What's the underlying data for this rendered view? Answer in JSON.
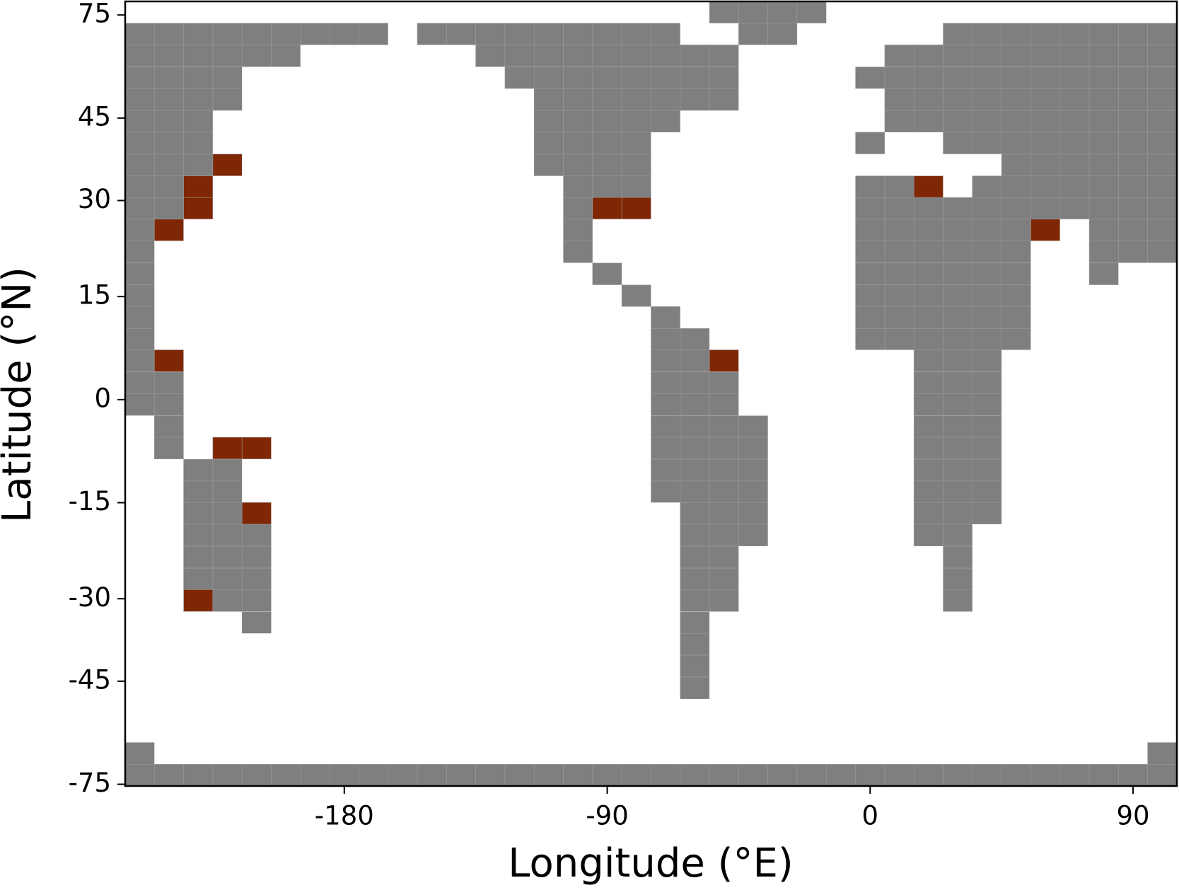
{
  "chart_data": {
    "type": "grid-map",
    "x_label": "Longitude (°E)",
    "y_label": "Latitude (°N)",
    "xlim": [
      -255,
      105
    ],
    "ylim": [
      -76,
      90
    ],
    "yscale": "sine",
    "xticks": [
      -180,
      -90,
      0,
      90
    ],
    "yticks": [
      75,
      45,
      30,
      15,
      0,
      -15,
      -30,
      -45,
      -75
    ],
    "colors": [
      "#ffffff",
      "#7f7f7f",
      "#7f2704"
    ],
    "x": [
      -250,
      -240,
      -230,
      -220,
      -210,
      -200,
      -190,
      -180,
      -170,
      -160,
      -150,
      -140,
      -130,
      -120,
      -110,
      -100,
      -90,
      -80,
      -70,
      -60,
      -50,
      -40,
      -30,
      -20,
      -10,
      0,
      10,
      20,
      30,
      40,
      50,
      60,
      70,
      80,
      90,
      100
    ],
    "y": [
      76.6,
      66.6,
      59.7,
      53.9,
      48.9,
      44.3,
      40.1,
      36.1,
      32.3,
      28.7,
      25.2,
      21.8,
      18.4,
      15.1,
      11.9,
      8.7,
      5.6,
      2.4,
      -0.7,
      -3.9,
      -7.0,
      -10.2,
      -13.4,
      -16.6,
      -19.9,
      -23.3,
      -26.8,
      -30.3,
      -34.1,
      -37.9,
      -42.0,
      -46.4,
      -51.2,
      -56.5,
      -62.7,
      -70.6
    ],
    "values": [
      [
        0,
        0,
        0,
        0,
        0,
        0,
        0,
        0,
        0,
        0,
        0,
        0,
        0,
        0,
        0,
        0,
        0,
        0,
        0,
        0,
        1,
        1,
        1,
        1,
        0,
        0,
        0,
        0,
        0,
        0,
        0,
        0,
        0,
        0,
        0,
        0
      ],
      [
        1,
        1,
        1,
        1,
        1,
        1,
        1,
        1,
        1,
        0,
        1,
        1,
        1,
        1,
        1,
        1,
        1,
        1,
        1,
        0,
        0,
        1,
        1,
        0,
        0,
        0,
        0,
        0,
        1,
        1,
        1,
        1,
        1,
        1,
        1,
        1
      ],
      [
        1,
        1,
        1,
        1,
        1,
        1,
        0,
        0,
        0,
        0,
        0,
        0,
        1,
        1,
        1,
        1,
        1,
        1,
        1,
        1,
        1,
        0,
        0,
        0,
        0,
        0,
        1,
        1,
        1,
        1,
        1,
        1,
        1,
        1,
        1,
        1
      ],
      [
        1,
        1,
        1,
        1,
        0,
        0,
        0,
        0,
        0,
        0,
        0,
        0,
        0,
        1,
        1,
        1,
        1,
        1,
        1,
        1,
        1,
        0,
        0,
        0,
        0,
        1,
        1,
        1,
        1,
        1,
        1,
        1,
        1,
        1,
        1,
        1
      ],
      [
        1,
        1,
        1,
        1,
        0,
        0,
        0,
        0,
        0,
        0,
        0,
        0,
        0,
        0,
        1,
        1,
        1,
        1,
        1,
        1,
        1,
        0,
        0,
        0,
        0,
        0,
        1,
        1,
        1,
        1,
        1,
        1,
        1,
        1,
        1,
        1
      ],
      [
        1,
        1,
        1,
        0,
        0,
        0,
        0,
        0,
        0,
        0,
        0,
        0,
        0,
        0,
        1,
        1,
        1,
        1,
        1,
        0,
        0,
        0,
        0,
        0,
        0,
        0,
        1,
        1,
        1,
        1,
        1,
        1,
        1,
        1,
        1,
        1
      ],
      [
        1,
        1,
        1,
        0,
        0,
        0,
        0,
        0,
        0,
        0,
        0,
        0,
        0,
        0,
        1,
        1,
        1,
        1,
        0,
        0,
        0,
        0,
        0,
        0,
        0,
        1,
        0,
        0,
        1,
        1,
        1,
        1,
        1,
        1,
        1,
        1
      ],
      [
        1,
        1,
        1,
        2,
        0,
        0,
        0,
        0,
        0,
        0,
        0,
        0,
        0,
        0,
        1,
        1,
        1,
        1,
        0,
        0,
        0,
        0,
        0,
        0,
        0,
        0,
        0,
        0,
        0,
        0,
        1,
        1,
        1,
        1,
        1,
        1
      ],
      [
        1,
        1,
        2,
        0,
        0,
        0,
        0,
        0,
        0,
        0,
        0,
        0,
        0,
        0,
        0,
        1,
        1,
        1,
        0,
        0,
        0,
        0,
        0,
        0,
        0,
        1,
        1,
        2,
        0,
        1,
        1,
        1,
        1,
        1,
        1,
        1
      ],
      [
        1,
        1,
        2,
        0,
        0,
        0,
        0,
        0,
        0,
        0,
        0,
        0,
        0,
        0,
        0,
        1,
        2,
        2,
        0,
        0,
        0,
        0,
        0,
        0,
        0,
        1,
        1,
        1,
        1,
        1,
        1,
        1,
        1,
        1,
        1,
        1
      ],
      [
        1,
        2,
        0,
        0,
        0,
        0,
        0,
        0,
        0,
        0,
        0,
        0,
        0,
        0,
        0,
        1,
        0,
        0,
        0,
        0,
        0,
        0,
        0,
        0,
        0,
        1,
        1,
        1,
        1,
        1,
        1,
        2,
        0,
        1,
        1,
        1
      ],
      [
        1,
        0,
        0,
        0,
        0,
        0,
        0,
        0,
        0,
        0,
        0,
        0,
        0,
        0,
        0,
        1,
        0,
        0,
        0,
        0,
        0,
        0,
        0,
        0,
        0,
        1,
        1,
        1,
        1,
        1,
        1,
        0,
        0,
        1,
        1,
        1
      ],
      [
        1,
        0,
        0,
        0,
        0,
        0,
        0,
        0,
        0,
        0,
        0,
        0,
        0,
        0,
        0,
        0,
        1,
        0,
        0,
        0,
        0,
        0,
        0,
        0,
        0,
        1,
        1,
        1,
        1,
        1,
        1,
        0,
        0,
        1,
        0,
        0
      ],
      [
        1,
        0,
        0,
        0,
        0,
        0,
        0,
        0,
        0,
        0,
        0,
        0,
        0,
        0,
        0,
        0,
        0,
        1,
        0,
        0,
        0,
        0,
        0,
        0,
        0,
        1,
        1,
        1,
        1,
        1,
        1,
        0,
        0,
        0,
        0,
        0
      ],
      [
        1,
        0,
        0,
        0,
        0,
        0,
        0,
        0,
        0,
        0,
        0,
        0,
        0,
        0,
        0,
        0,
        0,
        0,
        1,
        0,
        0,
        0,
        0,
        0,
        0,
        1,
        1,
        1,
        1,
        1,
        1,
        0,
        0,
        0,
        0,
        0
      ],
      [
        1,
        0,
        0,
        0,
        0,
        0,
        0,
        0,
        0,
        0,
        0,
        0,
        0,
        0,
        0,
        0,
        0,
        0,
        1,
        1,
        0,
        0,
        0,
        0,
        0,
        1,
        1,
        1,
        1,
        1,
        1,
        0,
        0,
        0,
        0,
        0
      ],
      [
        1,
        2,
        0,
        0,
        0,
        0,
        0,
        0,
        0,
        0,
        0,
        0,
        0,
        0,
        0,
        0,
        0,
        0,
        1,
        1,
        2,
        0,
        0,
        0,
        0,
        0,
        0,
        1,
        1,
        1,
        0,
        0,
        0,
        0,
        0,
        0
      ],
      [
        1,
        1,
        0,
        0,
        0,
        0,
        0,
        0,
        0,
        0,
        0,
        0,
        0,
        0,
        0,
        0,
        0,
        0,
        1,
        1,
        1,
        0,
        0,
        0,
        0,
        0,
        0,
        1,
        1,
        1,
        0,
        0,
        0,
        0,
        0,
        0
      ],
      [
        1,
        1,
        0,
        0,
        0,
        0,
        0,
        0,
        0,
        0,
        0,
        0,
        0,
        0,
        0,
        0,
        0,
        0,
        1,
        1,
        1,
        0,
        0,
        0,
        0,
        0,
        0,
        1,
        1,
        1,
        0,
        0,
        0,
        0,
        0,
        0
      ],
      [
        0,
        1,
        0,
        0,
        0,
        0,
        0,
        0,
        0,
        0,
        0,
        0,
        0,
        0,
        0,
        0,
        0,
        0,
        1,
        1,
        1,
        1,
        0,
        0,
        0,
        0,
        0,
        1,
        1,
        1,
        0,
        0,
        0,
        0,
        0,
        0
      ],
      [
        0,
        1,
        0,
        2,
        2,
        0,
        0,
        0,
        0,
        0,
        0,
        0,
        0,
        0,
        0,
        0,
        0,
        0,
        1,
        1,
        1,
        1,
        0,
        0,
        0,
        0,
        0,
        1,
        1,
        1,
        0,
        0,
        0,
        0,
        0,
        0
      ],
      [
        0,
        0,
        1,
        1,
        0,
        0,
        0,
        0,
        0,
        0,
        0,
        0,
        0,
        0,
        0,
        0,
        0,
        0,
        1,
        1,
        1,
        1,
        0,
        0,
        0,
        0,
        0,
        1,
        1,
        1,
        0,
        0,
        0,
        0,
        0,
        0
      ],
      [
        0,
        0,
        1,
        1,
        0,
        0,
        0,
        0,
        0,
        0,
        0,
        0,
        0,
        0,
        0,
        0,
        0,
        0,
        1,
        1,
        1,
        1,
        0,
        0,
        0,
        0,
        0,
        1,
        1,
        1,
        0,
        0,
        0,
        0,
        0,
        0
      ],
      [
        0,
        0,
        1,
        1,
        2,
        0,
        0,
        0,
        0,
        0,
        0,
        0,
        0,
        0,
        0,
        0,
        0,
        0,
        0,
        1,
        1,
        1,
        0,
        0,
        0,
        0,
        0,
        1,
        1,
        1,
        0,
        0,
        0,
        0,
        0,
        0
      ],
      [
        0,
        0,
        1,
        1,
        1,
        0,
        0,
        0,
        0,
        0,
        0,
        0,
        0,
        0,
        0,
        0,
        0,
        0,
        0,
        1,
        1,
        1,
        0,
        0,
        0,
        0,
        0,
        1,
        1,
        0,
        0,
        0,
        0,
        0,
        0,
        0
      ],
      [
        0,
        0,
        1,
        1,
        1,
        0,
        0,
        0,
        0,
        0,
        0,
        0,
        0,
        0,
        0,
        0,
        0,
        0,
        0,
        1,
        1,
        0,
        0,
        0,
        0,
        0,
        0,
        0,
        1,
        0,
        0,
        0,
        0,
        0,
        0,
        0
      ],
      [
        0,
        0,
        1,
        1,
        1,
        0,
        0,
        0,
        0,
        0,
        0,
        0,
        0,
        0,
        0,
        0,
        0,
        0,
        0,
        1,
        1,
        0,
        0,
        0,
        0,
        0,
        0,
        0,
        1,
        0,
        0,
        0,
        0,
        0,
        0,
        0
      ],
      [
        0,
        0,
        2,
        1,
        1,
        0,
        0,
        0,
        0,
        0,
        0,
        0,
        0,
        0,
        0,
        0,
        0,
        0,
        0,
        1,
        1,
        0,
        0,
        0,
        0,
        0,
        0,
        0,
        1,
        0,
        0,
        0,
        0,
        0,
        0,
        0
      ],
      [
        0,
        0,
        0,
        0,
        1,
        0,
        0,
        0,
        0,
        0,
        0,
        0,
        0,
        0,
        0,
        0,
        0,
        0,
        0,
        1,
        0,
        0,
        0,
        0,
        0,
        0,
        0,
        0,
        0,
        0,
        0,
        0,
        0,
        0,
        0,
        0
      ],
      [
        0,
        0,
        0,
        0,
        0,
        0,
        0,
        0,
        0,
        0,
        0,
        0,
        0,
        0,
        0,
        0,
        0,
        0,
        0,
        1,
        0,
        0,
        0,
        0,
        0,
        0,
        0,
        0,
        0,
        0,
        0,
        0,
        0,
        0,
        0,
        0
      ],
      [
        0,
        0,
        0,
        0,
        0,
        0,
        0,
        0,
        0,
        0,
        0,
        0,
        0,
        0,
        0,
        0,
        0,
        0,
        0,
        1,
        0,
        0,
        0,
        0,
        0,
        0,
        0,
        0,
        0,
        0,
        0,
        0,
        0,
        0,
        0,
        0
      ],
      [
        0,
        0,
        0,
        0,
        0,
        0,
        0,
        0,
        0,
        0,
        0,
        0,
        0,
        0,
        0,
        0,
        0,
        0,
        0,
        1,
        0,
        0,
        0,
        0,
        0,
        0,
        0,
        0,
        0,
        0,
        0,
        0,
        0,
        0,
        0,
        0
      ],
      [
        0,
        0,
        0,
        0,
        0,
        0,
        0,
        0,
        0,
        0,
        0,
        0,
        0,
        0,
        0,
        0,
        0,
        0,
        0,
        0,
        0,
        0,
        0,
        0,
        0,
        0,
        0,
        0,
        0,
        0,
        0,
        0,
        0,
        0,
        0,
        0
      ],
      [
        0,
        0,
        0,
        0,
        0,
        0,
        0,
        0,
        0,
        0,
        0,
        0,
        0,
        0,
        0,
        0,
        0,
        0,
        0,
        0,
        0,
        0,
        0,
        0,
        0,
        0,
        0,
        0,
        0,
        0,
        0,
        0,
        0,
        0,
        0,
        0
      ],
      [
        1,
        0,
        0,
        0,
        0,
        0,
        0,
        0,
        0,
        0,
        0,
        0,
        0,
        0,
        0,
        0,
        0,
        0,
        0,
        0,
        0,
        0,
        0,
        0,
        0,
        0,
        0,
        0,
        0,
        0,
        0,
        0,
        0,
        0,
        0,
        1
      ],
      [
        1,
        1,
        1,
        1,
        1,
        1,
        1,
        1,
        1,
        1,
        1,
        1,
        1,
        1,
        1,
        1,
        1,
        1,
        1,
        1,
        1,
        1,
        1,
        1,
        1,
        1,
        1,
        1,
        1,
        1,
        1,
        1,
        1,
        1,
        1,
        1
      ]
    ]
  }
}
